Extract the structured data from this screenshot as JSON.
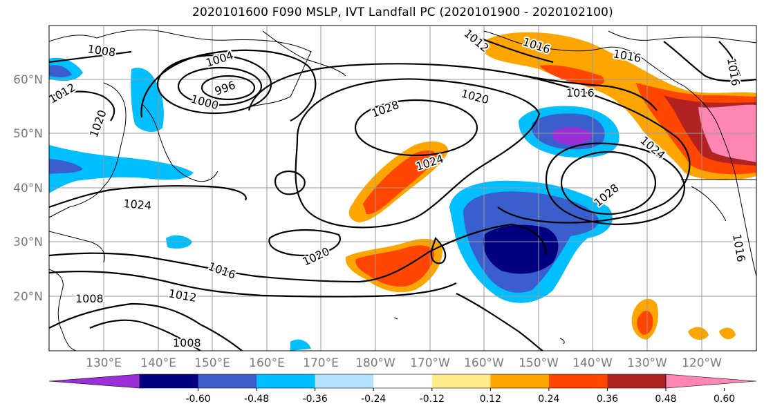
{
  "title": "2020101600 F090 MSLP, IVT Landfall PC (2020101900 - 2020102100)",
  "latitude_labels": [
    "60°N",
    "50°N",
    "40°N",
    "30°N",
    "20°N"
  ],
  "longitude_labels": [
    "130°E",
    "140°E",
    "150°E",
    "160°E",
    "170°E",
    "180°W",
    "170°W",
    "160°W",
    "150°W",
    "140°W",
    "130°W",
    "120°W"
  ],
  "colorbar": {
    "colors": [
      "#9b30d9",
      "#000080",
      "#3a5fcd",
      "#00bfff",
      "#b2e2ff",
      "#ffffff",
      "#ffea8a",
      "#ffa500",
      "#ff4500",
      "#b22222",
      "#ff85b3"
    ],
    "tick_labels": [
      "-0.60",
      "-0.48",
      "-0.36",
      "-0.24",
      "-0.12",
      "0.12",
      "0.24",
      "0.36",
      "0.48",
      "0.60"
    ]
  },
  "isobar_labels": [
    "1008",
    "1004",
    "1000",
    "996",
    "1012",
    "1020",
    "1028",
    "1024",
    "1016",
    "1020",
    "1016",
    "1016",
    "1024",
    "1028",
    "1024",
    "1020",
    "1016",
    "1012",
    "1008",
    "1008",
    "1016",
    "1016",
    "1012"
  ]
}
